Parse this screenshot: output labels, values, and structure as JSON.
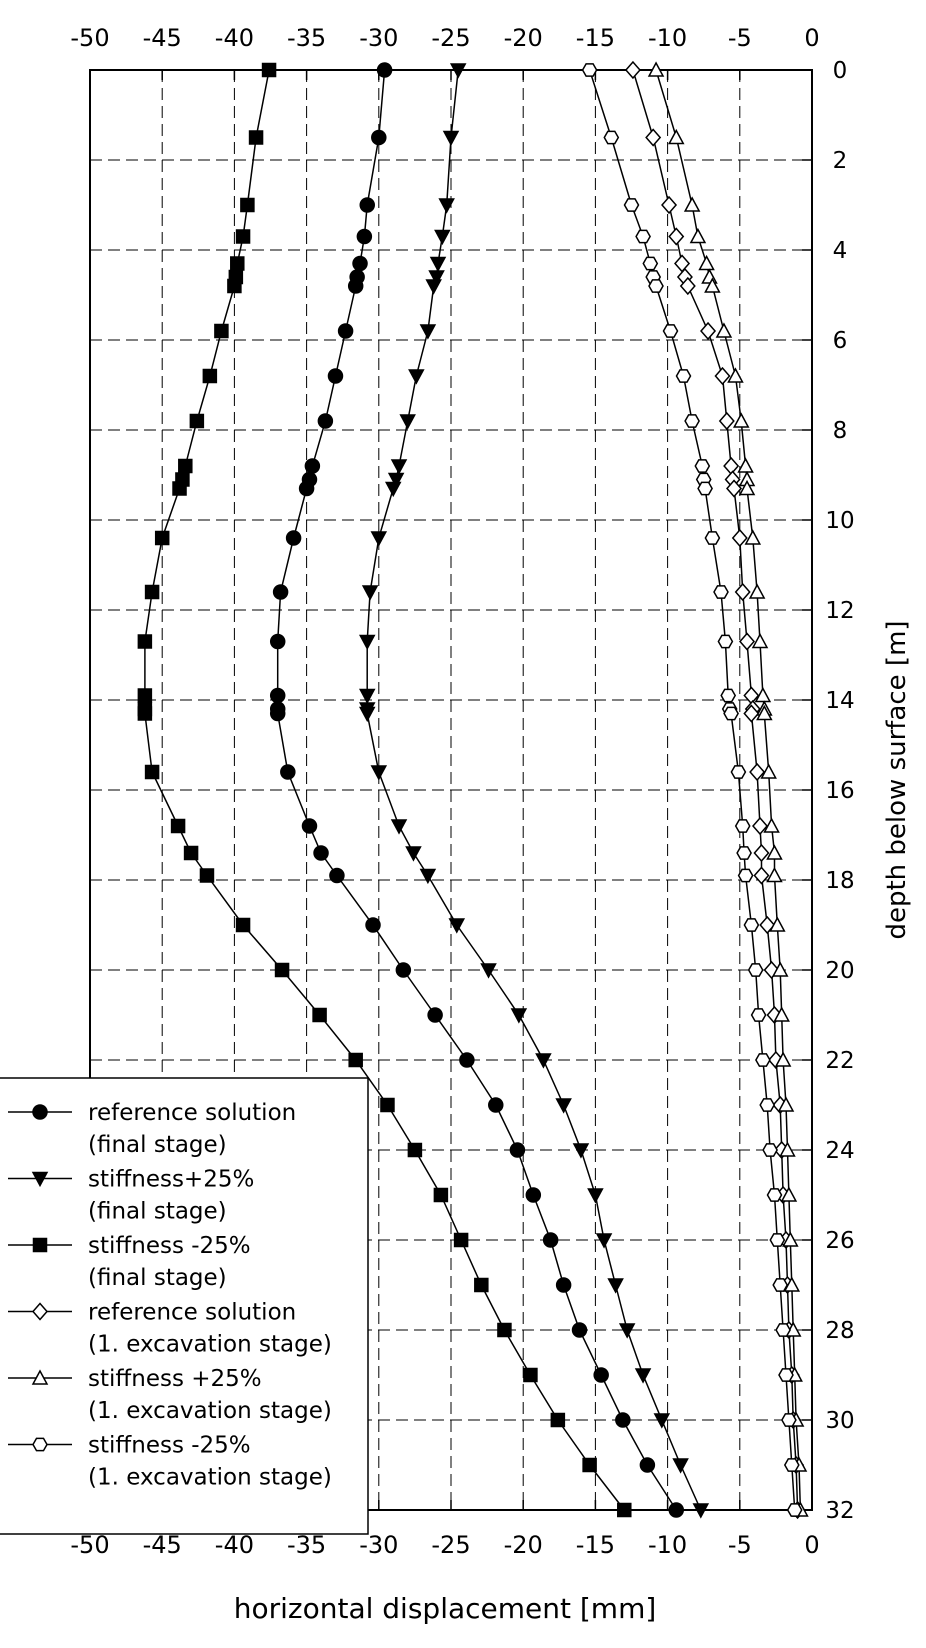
{
  "chart_data": {
    "type": "line",
    "title": "",
    "xlabel": "horizontal displacement [mm]",
    "ylabel": "depth below surface [m]",
    "xlim": [
      -50,
      0
    ],
    "ylim": [
      0,
      32
    ],
    "y_inverted": true,
    "x_ticks": [
      -50,
      -45,
      -40,
      -35,
      -30,
      -25,
      -20,
      -15,
      -10,
      -5,
      0
    ],
    "y_ticks": [
      0,
      2,
      4,
      6,
      8,
      10,
      12,
      14,
      16,
      18,
      20,
      22,
      24,
      26,
      28,
      30,
      32
    ],
    "x_tick_labels": [
      "-50",
      "-45",
      "-40",
      "-35",
      "-30",
      "-25",
      "-20",
      "-15",
      "-10",
      "-5",
      "0"
    ],
    "y_tick_labels": [
      "0",
      "2",
      "4",
      "6",
      "8",
      "10",
      "12",
      "14",
      "16",
      "18",
      "20",
      "22",
      "24",
      "26",
      "28",
      "30",
      "32"
    ],
    "grid": true,
    "grid_style": "dashed",
    "legend_position": "bottom-left",
    "series": [
      {
        "name": "reference solution (final stage)",
        "legend_lines": [
          "reference solution",
          "(final stage)"
        ],
        "marker": "circle",
        "filled": true,
        "color": "#000000",
        "points": [
          [
            -29.6,
            0
          ],
          [
            -30.0,
            1.5
          ],
          [
            -30.8,
            3.0
          ],
          [
            -31.0,
            3.7
          ],
          [
            -31.3,
            4.3
          ],
          [
            -31.5,
            4.6
          ],
          [
            -31.6,
            4.8
          ],
          [
            -32.3,
            5.8
          ],
          [
            -33.0,
            6.8
          ],
          [
            -33.7,
            7.8
          ],
          [
            -34.6,
            8.8
          ],
          [
            -34.8,
            9.1
          ],
          [
            -35.0,
            9.3
          ],
          [
            -35.9,
            10.4
          ],
          [
            -36.8,
            11.6
          ],
          [
            -37.0,
            12.7
          ],
          [
            -37.0,
            13.9
          ],
          [
            -37.0,
            14.2
          ],
          [
            -37.0,
            14.3
          ],
          [
            -36.3,
            15.6
          ],
          [
            -34.8,
            16.8
          ],
          [
            -34.0,
            17.4
          ],
          [
            -32.9,
            17.9
          ],
          [
            -30.4,
            19.0
          ],
          [
            -28.3,
            20.0
          ],
          [
            -26.1,
            21.0
          ],
          [
            -23.9,
            22.0
          ],
          [
            -21.9,
            23.0
          ],
          [
            -20.4,
            24.0
          ],
          [
            -19.3,
            25.0
          ],
          [
            -18.1,
            26.0
          ],
          [
            -17.2,
            27.0
          ],
          [
            -16.1,
            28.0
          ],
          [
            -14.6,
            29.0
          ],
          [
            -13.1,
            30.0
          ],
          [
            -11.4,
            31.0
          ],
          [
            -9.4,
            32.0
          ]
        ]
      },
      {
        "name": "stiffness+25% (final stage)",
        "legend_lines": [
          "stiffness+25%",
          "(final stage)"
        ],
        "marker": "triangle-down",
        "filled": true,
        "color": "#000000",
        "points": [
          [
            -24.5,
            0
          ],
          [
            -25.0,
            1.5
          ],
          [
            -25.3,
            3.0
          ],
          [
            -25.6,
            3.7
          ],
          [
            -25.9,
            4.3
          ],
          [
            -26.0,
            4.6
          ],
          [
            -26.2,
            4.8
          ],
          [
            -26.6,
            5.8
          ],
          [
            -27.4,
            6.8
          ],
          [
            -28.0,
            7.8
          ],
          [
            -28.6,
            8.8
          ],
          [
            -28.8,
            9.1
          ],
          [
            -29.0,
            9.3
          ],
          [
            -30.0,
            10.4
          ],
          [
            -30.6,
            11.6
          ],
          [
            -30.8,
            12.7
          ],
          [
            -30.8,
            13.9
          ],
          [
            -30.8,
            14.2
          ],
          [
            -30.8,
            14.3
          ],
          [
            -30.0,
            15.6
          ],
          [
            -28.6,
            16.8
          ],
          [
            -27.6,
            17.4
          ],
          [
            -26.6,
            17.9
          ],
          [
            -24.6,
            19.0
          ],
          [
            -22.4,
            20.0
          ],
          [
            -20.3,
            21.0
          ],
          [
            -18.6,
            22.0
          ],
          [
            -17.2,
            23.0
          ],
          [
            -16.0,
            24.0
          ],
          [
            -15.0,
            25.0
          ],
          [
            -14.4,
            26.0
          ],
          [
            -13.6,
            27.0
          ],
          [
            -12.8,
            28.0
          ],
          [
            -11.7,
            29.0
          ],
          [
            -10.4,
            30.0
          ],
          [
            -9.1,
            31.0
          ],
          [
            -7.7,
            32.0
          ]
        ]
      },
      {
        "name": "stiffness -25% (final stage)",
        "legend_lines": [
          "stiffness -25%",
          "(final stage)"
        ],
        "marker": "square",
        "filled": true,
        "color": "#000000",
        "points": [
          [
            -37.6,
            0
          ],
          [
            -38.5,
            1.5
          ],
          [
            -39.1,
            3.0
          ],
          [
            -39.4,
            3.7
          ],
          [
            -39.8,
            4.3
          ],
          [
            -39.9,
            4.6
          ],
          [
            -40.0,
            4.8
          ],
          [
            -40.9,
            5.8
          ],
          [
            -41.7,
            6.8
          ],
          [
            -42.6,
            7.8
          ],
          [
            -43.4,
            8.8
          ],
          [
            -43.6,
            9.1
          ],
          [
            -43.8,
            9.3
          ],
          [
            -45.0,
            10.4
          ],
          [
            -45.7,
            11.6
          ],
          [
            -46.2,
            12.7
          ],
          [
            -46.2,
            13.9
          ],
          [
            -46.2,
            14.2
          ],
          [
            -46.2,
            14.3
          ],
          [
            -45.7,
            15.6
          ],
          [
            -43.9,
            16.8
          ],
          [
            -43.0,
            17.4
          ],
          [
            -41.9,
            17.9
          ],
          [
            -39.4,
            19.0
          ],
          [
            -36.7,
            20.0
          ],
          [
            -34.1,
            21.0
          ],
          [
            -31.6,
            22.0
          ],
          [
            -29.4,
            23.0
          ],
          [
            -27.5,
            24.0
          ],
          [
            -25.7,
            25.0
          ],
          [
            -24.3,
            26.0
          ],
          [
            -22.9,
            27.0
          ],
          [
            -21.3,
            28.0
          ],
          [
            -19.5,
            29.0
          ],
          [
            -17.6,
            30.0
          ],
          [
            -15.4,
            31.0
          ],
          [
            -13.0,
            32.0
          ]
        ]
      },
      {
        "name": "reference solution (1. excavation stage)",
        "legend_lines": [
          "reference solution",
          "(1. excavation stage)"
        ],
        "marker": "diamond",
        "filled": false,
        "color": "#000000",
        "points": [
          [
            -12.4,
            0
          ],
          [
            -11.0,
            1.5
          ],
          [
            -9.9,
            3.0
          ],
          [
            -9.4,
            3.7
          ],
          [
            -9.0,
            4.3
          ],
          [
            -8.8,
            4.6
          ],
          [
            -8.6,
            4.8
          ],
          [
            -7.2,
            5.8
          ],
          [
            -6.2,
            6.8
          ],
          [
            -5.9,
            7.8
          ],
          [
            -5.6,
            8.8
          ],
          [
            -5.5,
            9.1
          ],
          [
            -5.4,
            9.3
          ],
          [
            -5.0,
            10.4
          ],
          [
            -4.8,
            11.6
          ],
          [
            -4.5,
            12.7
          ],
          [
            -4.2,
            13.9
          ],
          [
            -4.1,
            14.2
          ],
          [
            -4.2,
            14.3
          ],
          [
            -3.8,
            15.6
          ],
          [
            -3.6,
            16.8
          ],
          [
            -3.5,
            17.4
          ],
          [
            -3.5,
            17.9
          ],
          [
            -3.1,
            19.0
          ],
          [
            -2.8,
            20.0
          ],
          [
            -2.6,
            21.0
          ],
          [
            -2.5,
            22.0
          ],
          [
            -2.2,
            23.0
          ],
          [
            -2.1,
            24.0
          ],
          [
            -2.0,
            25.0
          ],
          [
            -1.8,
            26.0
          ],
          [
            -1.7,
            27.0
          ],
          [
            -1.6,
            28.0
          ],
          [
            -1.4,
            29.0
          ],
          [
            -1.3,
            30.0
          ],
          [
            -1.1,
            31.0
          ],
          [
            -1.0,
            32.0
          ]
        ]
      },
      {
        "name": "stiffness +25% (1. excavation stage)",
        "legend_lines": [
          "stiffness +25%",
          "(1. excavation stage)"
        ],
        "marker": "triangle-up",
        "filled": false,
        "color": "#000000",
        "points": [
          [
            -10.8,
            0
          ],
          [
            -9.4,
            1.5
          ],
          [
            -8.3,
            3.0
          ],
          [
            -7.9,
            3.7
          ],
          [
            -7.3,
            4.3
          ],
          [
            -7.1,
            4.6
          ],
          [
            -6.9,
            4.8
          ],
          [
            -6.1,
            5.8
          ],
          [
            -5.3,
            6.8
          ],
          [
            -4.9,
            7.8
          ],
          [
            -4.6,
            8.8
          ],
          [
            -4.5,
            9.1
          ],
          [
            -4.5,
            9.3
          ],
          [
            -4.1,
            10.4
          ],
          [
            -3.8,
            11.6
          ],
          [
            -3.6,
            12.7
          ],
          [
            -3.4,
            13.9
          ],
          [
            -3.3,
            14.2
          ],
          [
            -3.3,
            14.3
          ],
          [
            -3.0,
            15.6
          ],
          [
            -2.8,
            16.8
          ],
          [
            -2.6,
            17.4
          ],
          [
            -2.6,
            17.9
          ],
          [
            -2.4,
            19.0
          ],
          [
            -2.2,
            20.0
          ],
          [
            -2.1,
            21.0
          ],
          [
            -2.0,
            22.0
          ],
          [
            -1.8,
            23.0
          ],
          [
            -1.7,
            24.0
          ],
          [
            -1.6,
            25.0
          ],
          [
            -1.5,
            26.0
          ],
          [
            -1.4,
            27.0
          ],
          [
            -1.3,
            28.0
          ],
          [
            -1.2,
            29.0
          ],
          [
            -1.1,
            30.0
          ],
          [
            -0.9,
            31.0
          ],
          [
            -0.8,
            32.0
          ]
        ]
      },
      {
        "name": "stiffness -25% (1. excavation stage)",
        "legend_lines": [
          "stiffness -25%",
          "(1. excavation stage)"
        ],
        "marker": "hexagon",
        "filled": false,
        "color": "#000000",
        "points": [
          [
            -15.4,
            0
          ],
          [
            -13.9,
            1.5
          ],
          [
            -12.5,
            3.0
          ],
          [
            -11.7,
            3.7
          ],
          [
            -11.2,
            4.3
          ],
          [
            -11.0,
            4.6
          ],
          [
            -10.8,
            4.8
          ],
          [
            -9.8,
            5.8
          ],
          [
            -8.9,
            6.8
          ],
          [
            -8.3,
            7.8
          ],
          [
            -7.6,
            8.8
          ],
          [
            -7.5,
            9.1
          ],
          [
            -7.4,
            9.3
          ],
          [
            -6.9,
            10.4
          ],
          [
            -6.3,
            11.6
          ],
          [
            -6.0,
            12.7
          ],
          [
            -5.8,
            13.9
          ],
          [
            -5.7,
            14.2
          ],
          [
            -5.6,
            14.3
          ],
          [
            -5.1,
            15.6
          ],
          [
            -4.8,
            16.8
          ],
          [
            -4.7,
            17.4
          ],
          [
            -4.6,
            17.9
          ],
          [
            -4.2,
            19.0
          ],
          [
            -3.9,
            20.0
          ],
          [
            -3.7,
            21.0
          ],
          [
            -3.4,
            22.0
          ],
          [
            -3.1,
            23.0
          ],
          [
            -2.9,
            24.0
          ],
          [
            -2.6,
            25.0
          ],
          [
            -2.4,
            26.0
          ],
          [
            -2.2,
            27.0
          ],
          [
            -2.0,
            28.0
          ],
          [
            -1.8,
            29.0
          ],
          [
            -1.6,
            30.0
          ],
          [
            -1.4,
            31.0
          ],
          [
            -1.2,
            32.0
          ]
        ]
      }
    ]
  }
}
